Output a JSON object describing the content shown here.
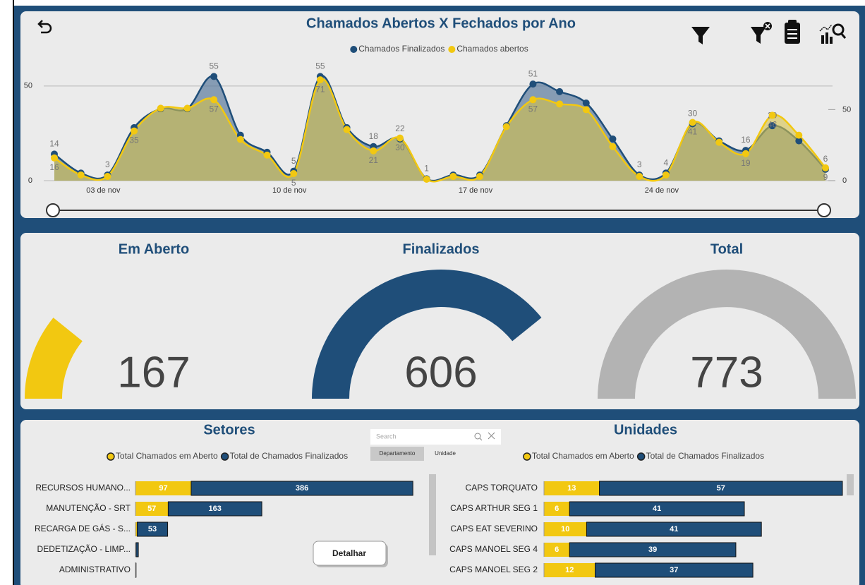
{
  "chart_data": [
    {
      "type": "line",
      "title": "Chamados Abertos X Fechados por Ano",
      "categories": [
        null,
        null,
        "03 de nov",
        null,
        null,
        null,
        null,
        null,
        null,
        "10 de nov",
        null,
        null,
        null,
        null,
        null,
        null,
        "17 de nov",
        null,
        null,
        null,
        null,
        null,
        null,
        "24 de nov",
        null,
        null,
        null,
        null,
        null,
        null
      ],
      "series": [
        {
          "name": "Chamados Finalizados",
          "color": "#1f4e79",
          "values": [
            14,
            4,
            3,
            28,
            38,
            38,
            55,
            24,
            15,
            5,
            55,
            28,
            18,
            22,
            1,
            3,
            3,
            29,
            51,
            47,
            41,
            22,
            3,
            4,
            30,
            21,
            16,
            29,
            21,
            6
          ],
          "value_labels": [
            "14",
            null,
            "3",
            null,
            null,
            null,
            "55",
            null,
            null,
            "5",
            "55",
            null,
            "18",
            "22",
            "1",
            null,
            null,
            null,
            "51",
            null,
            null,
            null,
            "3",
            "4",
            "30",
            null,
            "16",
            "29",
            null,
            "6"
          ]
        },
        {
          "name": "Chamados abertos",
          "color": "#f2c811",
          "axis": "y2",
          "values": [
            16,
            4,
            3,
            35,
            51,
            51,
            57,
            29,
            18,
            5,
            71,
            36,
            21,
            30,
            1,
            3,
            3,
            38,
            57,
            54,
            50,
            24,
            3,
            4,
            41,
            27,
            19,
            46,
            32,
            9
          ],
          "value_labels": [
            "16",
            null,
            null,
            "35",
            null,
            null,
            "57",
            null,
            null,
            "5",
            "71",
            null,
            "21",
            "30",
            null,
            null,
            null,
            null,
            "57",
            null,
            null,
            null,
            null,
            null,
            "41",
            null,
            "19",
            "46",
            null,
            "9"
          ]
        }
      ],
      "ylim": [
        0,
        60
      ],
      "yticks": [
        0,
        50
      ],
      "y2lim": [
        0,
        80
      ],
      "y2ticks": [
        0,
        50
      ],
      "grid": true
    },
    {
      "type": "gauge",
      "title": "Em Aberto",
      "value": 167,
      "ylim": [
        0,
        773
      ],
      "color": "#f2c811"
    },
    {
      "type": "gauge",
      "title": "Finalizados",
      "value": 606,
      "ylim": [
        0,
        773
      ],
      "color": "#1f4e79"
    },
    {
      "type": "gauge",
      "title": "Total",
      "value": 773,
      "ylim": [
        0,
        773
      ],
      "color": "#b3b3b3"
    },
    {
      "type": "bar",
      "orientation": "horizontal",
      "stacked": true,
      "title": "Setores",
      "categories": [
        "RECURSOS HUMANO...",
        "MANUTENÇÃO - SRT",
        "RECARGA DE GÁS - S...",
        "DEDETIZAÇÃO - LIMP...",
        "ADMINISTRATIVO"
      ],
      "series": [
        {
          "name": "Total Chamados em Aberto",
          "color": "#f2c811",
          "values": [
            97,
            57,
            3,
            1,
            0
          ],
          "value_labels": [
            "97",
            "57",
            null,
            null,
            null
          ]
        },
        {
          "name": "Total de Chamados Finalizados",
          "color": "#1f4e79",
          "values": [
            386,
            163,
            53,
            4,
            1
          ],
          "value_labels": [
            "386",
            "163",
            "53",
            null,
            null
          ]
        }
      ],
      "xlim": [
        0,
        500
      ]
    },
    {
      "type": "bar",
      "orientation": "horizontal",
      "stacked": true,
      "title": "Unidades",
      "categories": [
        "CAPS TORQUATO",
        "CAPS ARTHUR SEG 1",
        "CAPS EAT SEVERINO",
        "CAPS MANOEL SEG 4",
        "CAPS MANOEL SEG 2"
      ],
      "series": [
        {
          "name": "Total Chamados em Aberto",
          "color": "#f2c811",
          "values": [
            13,
            6,
            10,
            6,
            12
          ],
          "value_labels": [
            "13",
            "6",
            "10",
            "6",
            "12"
          ]
        },
        {
          "name": "Total de Chamados Finalizados",
          "color": "#1f4e79",
          "values": [
            57,
            41,
            41,
            39,
            37
          ],
          "value_labels": [
            "57",
            "41",
            "41",
            "39",
            "37"
          ]
        }
      ],
      "xlim": [
        0,
        70
      ]
    }
  ],
  "ui": {
    "search_placeholder": "Search",
    "tabs": [
      "Departamento",
      "Unidade"
    ],
    "button": "Detalhar"
  }
}
